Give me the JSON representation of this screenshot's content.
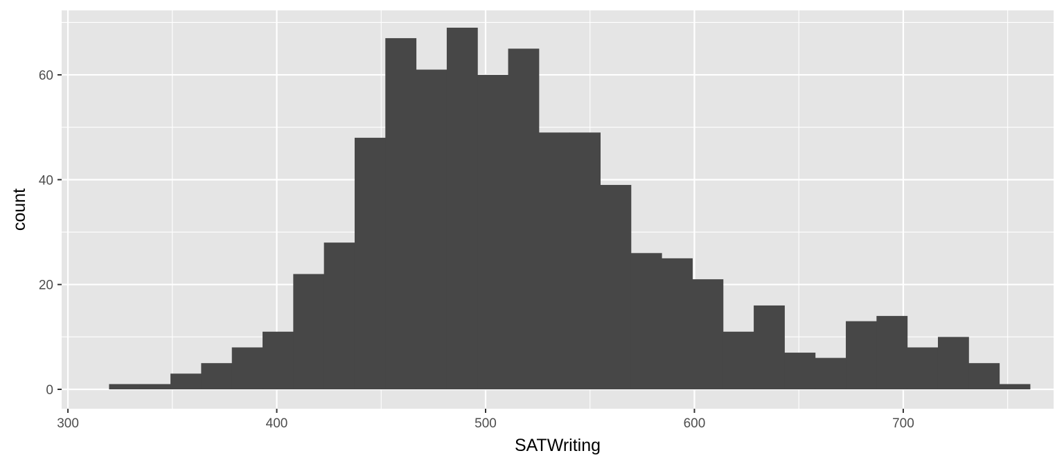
{
  "chart_data": {
    "type": "histogram",
    "title": "",
    "xlabel": "SATWriting",
    "ylabel": "count",
    "bin_width": 14.7,
    "xlim": [
      297,
      772
    ],
    "ylim": [
      -3.7,
      72.3
    ],
    "x_ticks": [
      300,
      400,
      500,
      600,
      700
    ],
    "y_ticks": [
      0,
      20,
      40,
      60
    ],
    "grid": true,
    "legend": "none",
    "bins": [
      {
        "x0": 319.7,
        "x1": 334.4,
        "count": 1
      },
      {
        "x0": 334.4,
        "x1": 349.1,
        "count": 1
      },
      {
        "x0": 349.1,
        "x1": 363.8,
        "count": 3
      },
      {
        "x0": 363.8,
        "x1": 378.5,
        "count": 5
      },
      {
        "x0": 378.5,
        "x1": 393.2,
        "count": 8
      },
      {
        "x0": 393.2,
        "x1": 407.9,
        "count": 11
      },
      {
        "x0": 407.9,
        "x1": 422.6,
        "count": 22
      },
      {
        "x0": 422.6,
        "x1": 437.3,
        "count": 28
      },
      {
        "x0": 437.3,
        "x1": 452.0,
        "count": 48
      },
      {
        "x0": 452.0,
        "x1": 466.7,
        "count": 67
      },
      {
        "x0": 466.7,
        "x1": 481.4,
        "count": 61
      },
      {
        "x0": 481.4,
        "x1": 496.1,
        "count": 69
      },
      {
        "x0": 496.1,
        "x1": 510.8,
        "count": 60
      },
      {
        "x0": 510.8,
        "x1": 525.5,
        "count": 65
      },
      {
        "x0": 525.5,
        "x1": 540.2,
        "count": 49
      },
      {
        "x0": 540.2,
        "x1": 554.9,
        "count": 49
      },
      {
        "x0": 554.9,
        "x1": 569.6,
        "count": 39
      },
      {
        "x0": 569.6,
        "x1": 584.3,
        "count": 26
      },
      {
        "x0": 584.3,
        "x1": 599.0,
        "count": 25
      },
      {
        "x0": 599.0,
        "x1": 613.7,
        "count": 21
      },
      {
        "x0": 613.7,
        "x1": 628.4,
        "count": 11
      },
      {
        "x0": 628.4,
        "x1": 643.1,
        "count": 16
      },
      {
        "x0": 643.1,
        "x1": 657.8,
        "count": 7
      },
      {
        "x0": 657.8,
        "x1": 672.5,
        "count": 6
      },
      {
        "x0": 672.5,
        "x1": 687.2,
        "count": 13
      },
      {
        "x0": 687.2,
        "x1": 701.9,
        "count": 14
      },
      {
        "x0": 701.9,
        "x1": 716.6,
        "count": 8
      },
      {
        "x0": 716.6,
        "x1": 731.3,
        "count": 10
      },
      {
        "x0": 731.3,
        "x1": 746.0,
        "count": 5
      },
      {
        "x0": 746.0,
        "x1": 760.7,
        "count": 1
      }
    ],
    "colors": {
      "panel_background": "#e5e5e5",
      "grid_line": "#ffffff",
      "bar_fill": "#474747",
      "tick_text": "#4d4d4d",
      "axis_title_text": "#000000",
      "tick_mark": "#333333"
    }
  }
}
